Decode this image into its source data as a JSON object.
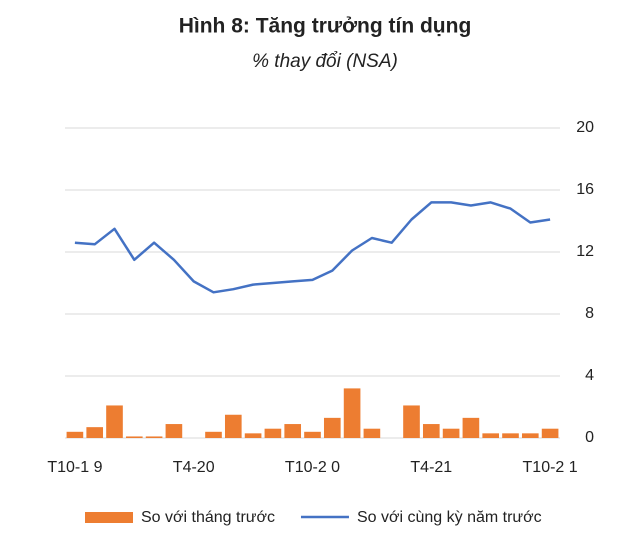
{
  "chart_data": {
    "type": "combo",
    "title": "Hình 8: Tăng trưởng tín dụng",
    "subtitle": "% thay đổi (NSA)",
    "categories": [
      "T10-1 9",
      null,
      null,
      null,
      null,
      null,
      "T4-20",
      null,
      null,
      null,
      null,
      null,
      "T10-2 0",
      null,
      null,
      null,
      null,
      null,
      "T4-21",
      null,
      null,
      null,
      null,
      null,
      "T10-2 1"
    ],
    "series": [
      {
        "name": "So với tháng trước",
        "color": "#ed7d31",
        "type": "bar",
        "values": [
          0.4,
          0.7,
          2.1,
          0.1,
          0.1,
          0.9,
          0,
          0.4,
          1.5,
          0.3,
          0.6,
          0.9,
          0.4,
          1.3,
          3.2,
          0.6,
          0,
          2.1,
          0.9,
          0.6,
          1.3,
          0.3,
          0.3,
          0.3,
          0.6
        ]
      },
      {
        "name": "So với cùng kỳ năm trước",
        "color": "#4472c4",
        "type": "line",
        "values": [
          12.6,
          12.5,
          13.5,
          11.5,
          12.6,
          11.5,
          10.1,
          9.4,
          9.6,
          9.9,
          10.0,
          10.1,
          10.2,
          10.8,
          12.1,
          12.9,
          12.6,
          14.1,
          15.2,
          15.2,
          15.0,
          15.2,
          14.8,
          13.9,
          14.1
        ]
      }
    ],
    "ylim": [
      0,
      20
    ],
    "yticks": [
      0,
      4,
      8,
      12,
      16,
      20
    ],
    "grid": true,
    "legend": "bottom"
  }
}
